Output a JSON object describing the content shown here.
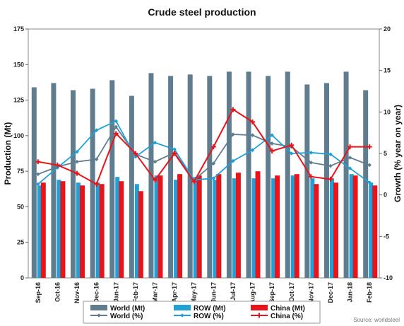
{
  "chart_data": {
    "type": "bar",
    "title": "Crude steel production",
    "ylabel": "Production (Mt)",
    "y2label": "Growth (% year on year)",
    "ylim": [
      0,
      175
    ],
    "y2lim": [
      -10,
      20
    ],
    "yticks": [
      "0",
      "25",
      "50",
      "75",
      "100",
      "125",
      "150",
      "175"
    ],
    "y2ticks": [
      "-10",
      "-5",
      "0",
      "5",
      "10",
      "15",
      "20"
    ],
    "categories": [
      "Sep-16",
      "Oct-16",
      "Nov-16",
      "Dec-16",
      "Jan-17",
      "Feb-17",
      "Mar-17",
      "Apr-17",
      "May-17",
      "Jun-17",
      "Jul-17",
      "Aug-17",
      "Sep-17",
      "Oct-17",
      "Nov-17",
      "Dec-17",
      "Jan-18",
      "Feb-18"
    ],
    "bar_series": [
      {
        "name": "World (Mt)",
        "color": "#5f7d8f",
        "values": [
          134,
          137,
          132,
          133,
          139,
          128,
          144,
          142,
          143,
          142,
          145,
          145,
          142,
          145,
          136,
          137,
          145,
          132
        ]
      },
      {
        "name": "ROW (Mt)",
        "color": "#1fa1d8",
        "values": [
          65,
          69,
          67,
          67,
          71,
          66,
          72,
          69,
          71,
          69,
          70,
          70,
          70,
          72,
          70,
          70,
          73,
          67
        ]
      },
      {
        "name": "China (Mt)",
        "color": "#e8141a",
        "values": [
          67,
          68,
          65,
          66,
          68,
          61,
          72,
          73,
          72,
          73,
          74,
          75,
          72,
          73,
          66,
          67,
          72,
          65
        ]
      }
    ],
    "line_series": [
      {
        "name": "World (%)",
        "color": "#5f7d8f",
        "marker": "diamond",
        "values": [
          2.5,
          3.4,
          4.0,
          4.3,
          8.2,
          4.9,
          4.0,
          5.1,
          1.8,
          3.8,
          7.3,
          7.2,
          6.2,
          5.8,
          3.9,
          3.5,
          4.5,
          3.6
        ]
      },
      {
        "name": "ROW (%)",
        "color": "#1fa1d8",
        "marker": "diamond",
        "values": [
          1.3,
          3.3,
          5.2,
          7.8,
          8.9,
          4.6,
          6.3,
          5.5,
          1.8,
          2.0,
          4.1,
          5.4,
          7.2,
          5.0,
          5.1,
          4.9,
          3.2,
          1.5
        ]
      },
      {
        "name": "China (%)",
        "color": "#e8141a",
        "marker": "plus",
        "values": [
          4.0,
          3.6,
          2.6,
          1.3,
          7.4,
          5.0,
          1.8,
          5.0,
          1.6,
          5.8,
          10.3,
          8.8,
          5.3,
          6.0,
          2.2,
          1.9,
          5.8,
          5.8
        ]
      }
    ],
    "grid": false,
    "legend_position": "bottom",
    "source": "Source: worldsteel"
  }
}
